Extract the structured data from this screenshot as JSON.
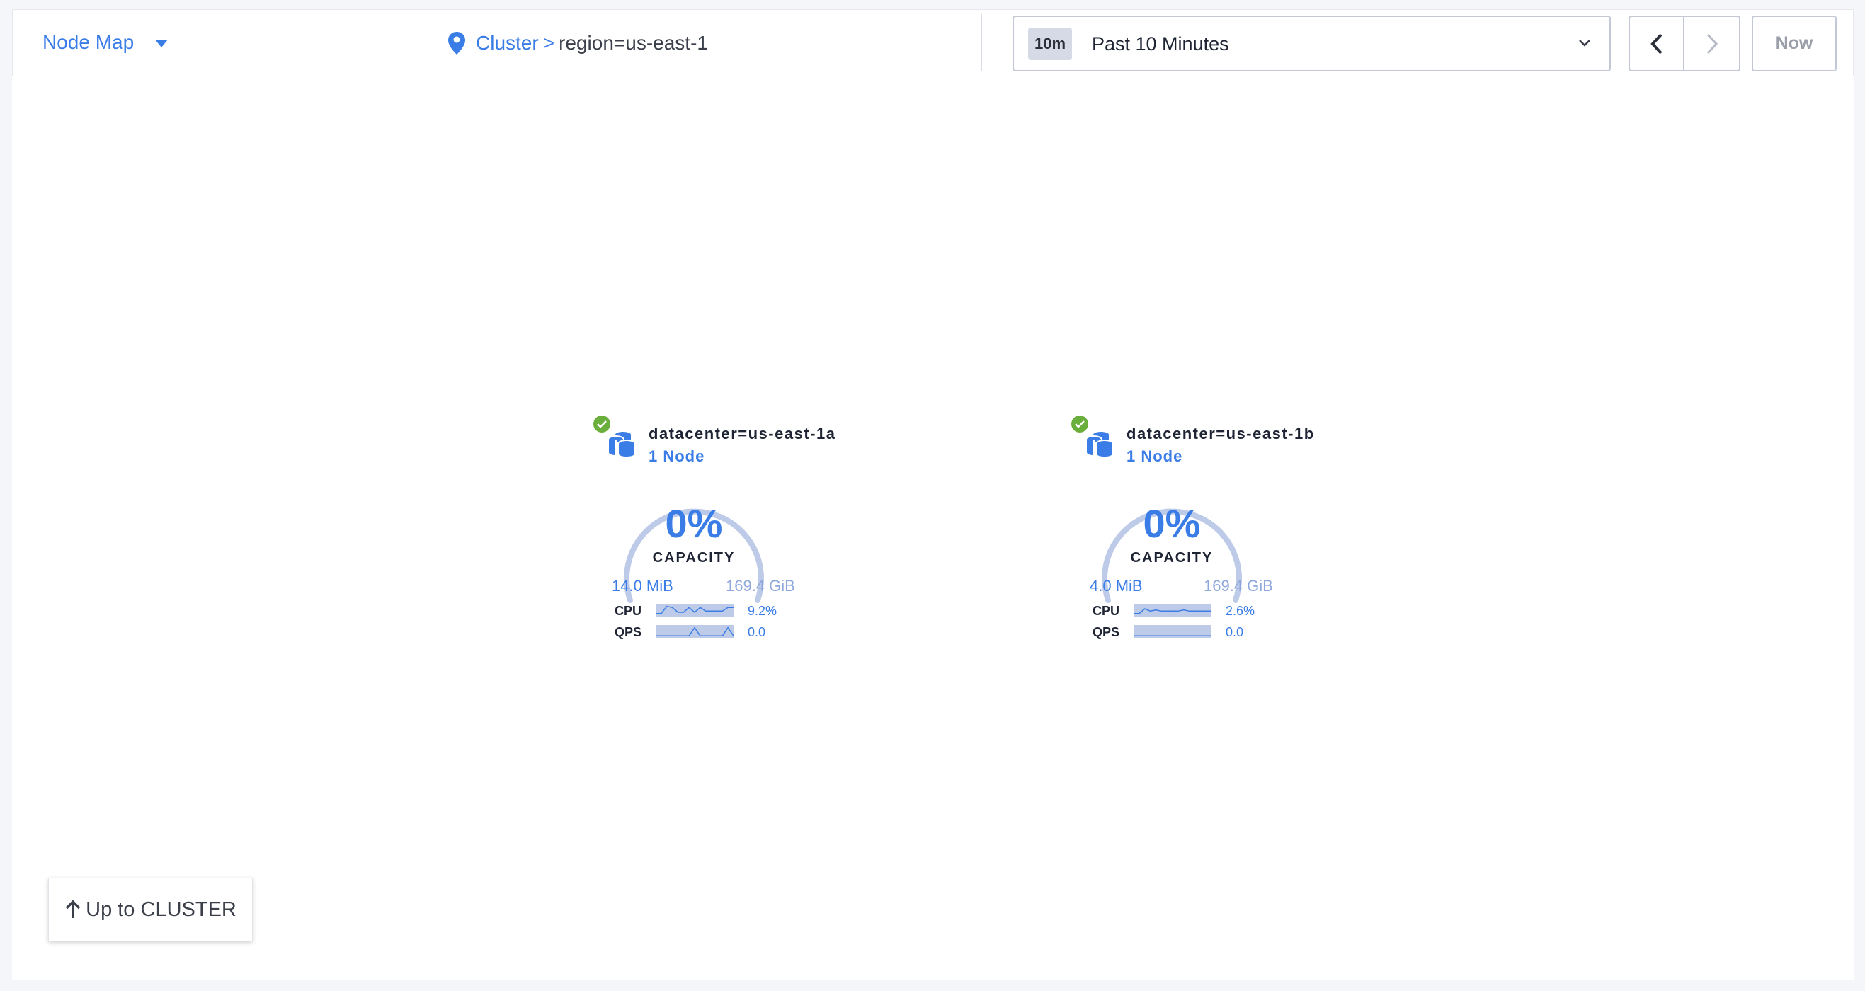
{
  "header": {
    "view_label": "Node Map",
    "breadcrumb": {
      "root": "Cluster",
      "separator": ">",
      "current": "region=us-east-1"
    },
    "time": {
      "badge": "10m",
      "label": "Past 10 Minutes"
    },
    "now_label": "Now"
  },
  "colors": {
    "accent": "#3a7de6",
    "gauge_track": "#bdcbe8",
    "ok": "#6aae3b"
  },
  "datacenters": [
    {
      "name": "datacenter=us-east-1a",
      "nodes": "1 Node",
      "status": "ok",
      "capacity_percent": "0%",
      "capacity_label": "CAPACITY",
      "used": "14.0 MiB",
      "total": "169.4 GiB",
      "cpu": {
        "label": "CPU",
        "value": "9.2%",
        "spark": [
          2,
          2,
          8,
          7,
          3,
          3,
          7,
          3,
          7,
          4,
          4,
          4,
          4,
          7,
          7
        ]
      },
      "qps": {
        "label": "QPS",
        "value": "0.0",
        "spark": [
          1,
          1,
          1,
          1,
          1,
          1,
          1,
          8,
          1,
          1,
          1,
          1,
          1,
          8,
          1
        ]
      }
    },
    {
      "name": "datacenter=us-east-1b",
      "nodes": "1 Node",
      "status": "ok",
      "capacity_percent": "0%",
      "capacity_label": "CAPACITY",
      "used": "4.0 MiB",
      "total": "169.4 GiB",
      "cpu": {
        "label": "CPU",
        "value": "2.6%",
        "spark": [
          2,
          2,
          6,
          4,
          5,
          4,
          4,
          4,
          4,
          5,
          4,
          4,
          4,
          4,
          4
        ]
      },
      "qps": {
        "label": "QPS",
        "value": "0.0",
        "spark": [
          1,
          1,
          1,
          1,
          1,
          1,
          1,
          1,
          1,
          1,
          1,
          1,
          1,
          1,
          1
        ]
      }
    }
  ],
  "up_button": {
    "label": "Up to CLUSTER"
  }
}
